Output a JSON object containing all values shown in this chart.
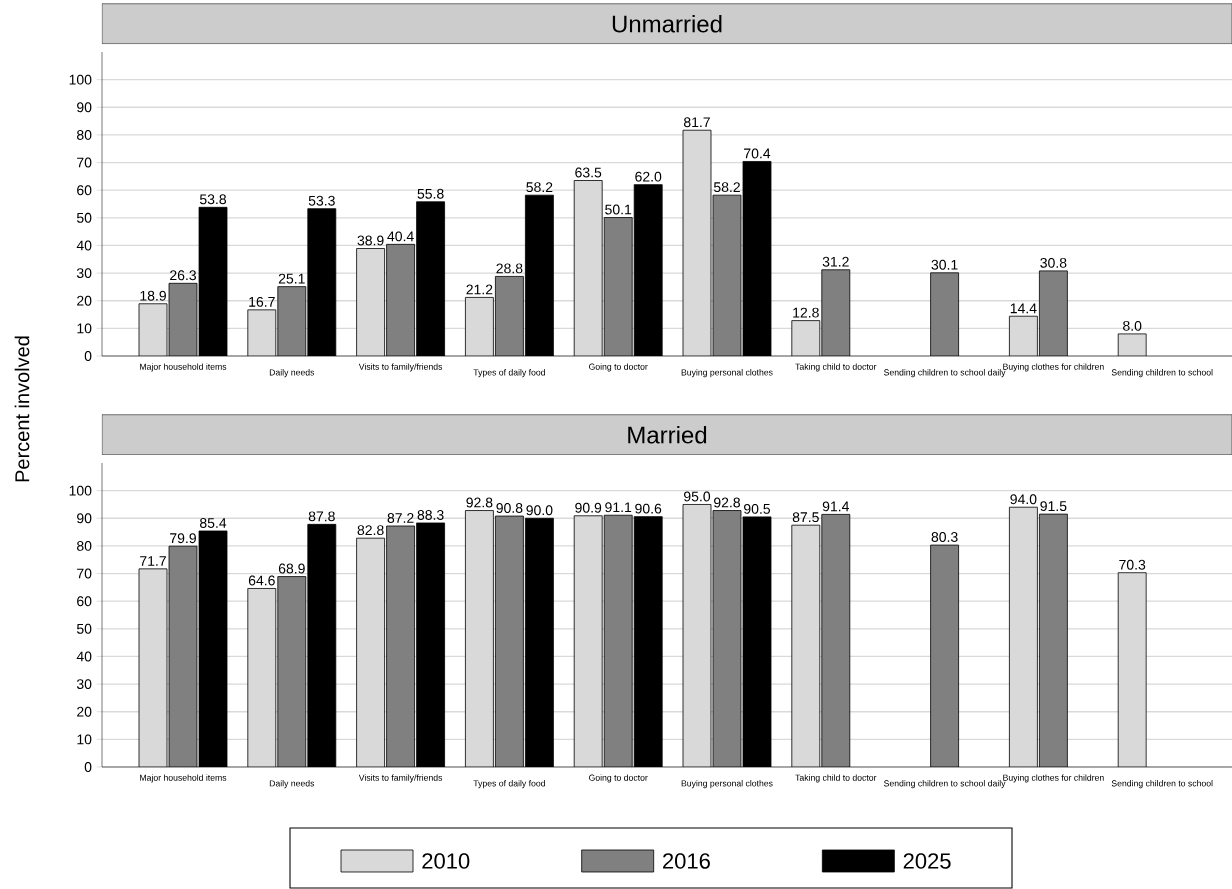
{
  "chart_data": [
    {
      "type": "bar",
      "title": "Unmarried",
      "categories": [
        "Major household items",
        "Daily needs",
        "Visits to family/friends",
        "Types of daily food",
        "Going to doctor",
        "Buying personal clothes",
        "Taking child to doctor",
        "Sending children to school daily",
        "Buying clothes for children",
        "Sending children to school"
      ],
      "series": [
        {
          "color": "#d9d9d9",
          "values": [
            18.9,
            16.7,
            38.9,
            21.2,
            63.5,
            81.7,
            12.8,
            null,
            14.4,
            8.0
          ],
          "value_labels": [
            "18.9",
            "16.7",
            "38.9",
            "21.2",
            "63.5",
            "81.7",
            "12.8",
            null,
            "14.4",
            "8.0"
          ]
        },
        {
          "color": "#808080",
          "values": [
            26.3,
            25.1,
            40.4,
            28.8,
            50.1,
            58.2,
            31.2,
            30.1,
            30.8,
            null
          ],
          "value_labels": [
            "26.3",
            "25.1",
            "40.4",
            "28.8",
            "50.1",
            "58.2",
            "31.2",
            "30.1",
            "30.8",
            null
          ]
        },
        {
          "color": "#000000",
          "values": [
            53.8,
            53.3,
            55.8,
            58.2,
            62.0,
            70.4,
            null,
            null,
            null,
            null
          ],
          "value_labels": [
            "53.8",
            "53.3",
            "55.8",
            "58.2",
            "62.0",
            "70.4",
            null,
            null,
            null,
            null
          ]
        }
      ],
      "ylim": [
        0,
        110
      ],
      "yticks": [
        0,
        10,
        20,
        30,
        40,
        50,
        60,
        70,
        80,
        90,
        100
      ],
      "grid": "y"
    },
    {
      "type": "bar",
      "title": "Married",
      "ylabel": "Percent involved",
      "categories": [
        "Major household items",
        "Daily needs",
        "Visits to family/friends",
        "Types of daily food",
        "Going to doctor",
        "Buying personal clothes",
        "Taking child to doctor",
        "Sending children to school daily",
        "Buying clothes for children",
        "Sending children to school"
      ],
      "series": [
        {
          "name": "2010",
          "color": "#d9d9d9",
          "values": [
            71.7,
            64.6,
            82.8,
            92.8,
            90.9,
            95.0,
            87.5,
            null,
            94.0,
            70.3
          ],
          "value_labels": [
            "71.7",
            "64.6",
            "82.8",
            "92.8",
            "90.9",
            "95.0",
            "87.5",
            null,
            "94.0",
            "70.3"
          ]
        },
        {
          "name": "2016",
          "color": "#808080",
          "values": [
            79.9,
            68.9,
            87.2,
            90.8,
            91.1,
            92.8,
            91.4,
            80.3,
            91.5,
            null
          ],
          "value_labels": [
            "79.9",
            "68.9",
            "87.2",
            "90.8",
            "91.1",
            "92.8",
            "91.4",
            "80.3",
            "91.5",
            null
          ]
        },
        {
          "name": "2025",
          "color": "#000000",
          "values": [
            85.4,
            87.8,
            88.3,
            90.0,
            90.6,
            90.5,
            null,
            null,
            null,
            null
          ],
          "value_labels": [
            "85.4",
            "87.8",
            "88.3",
            "90.0",
            "90.6",
            "90.5",
            null,
            null,
            null,
            null
          ]
        }
      ],
      "ylim": [
        0,
        110
      ],
      "yticks": [
        0,
        10,
        20,
        30,
        40,
        50,
        60,
        70,
        80,
        90,
        100
      ],
      "grid": "y",
      "legend": "bottom"
    }
  ]
}
